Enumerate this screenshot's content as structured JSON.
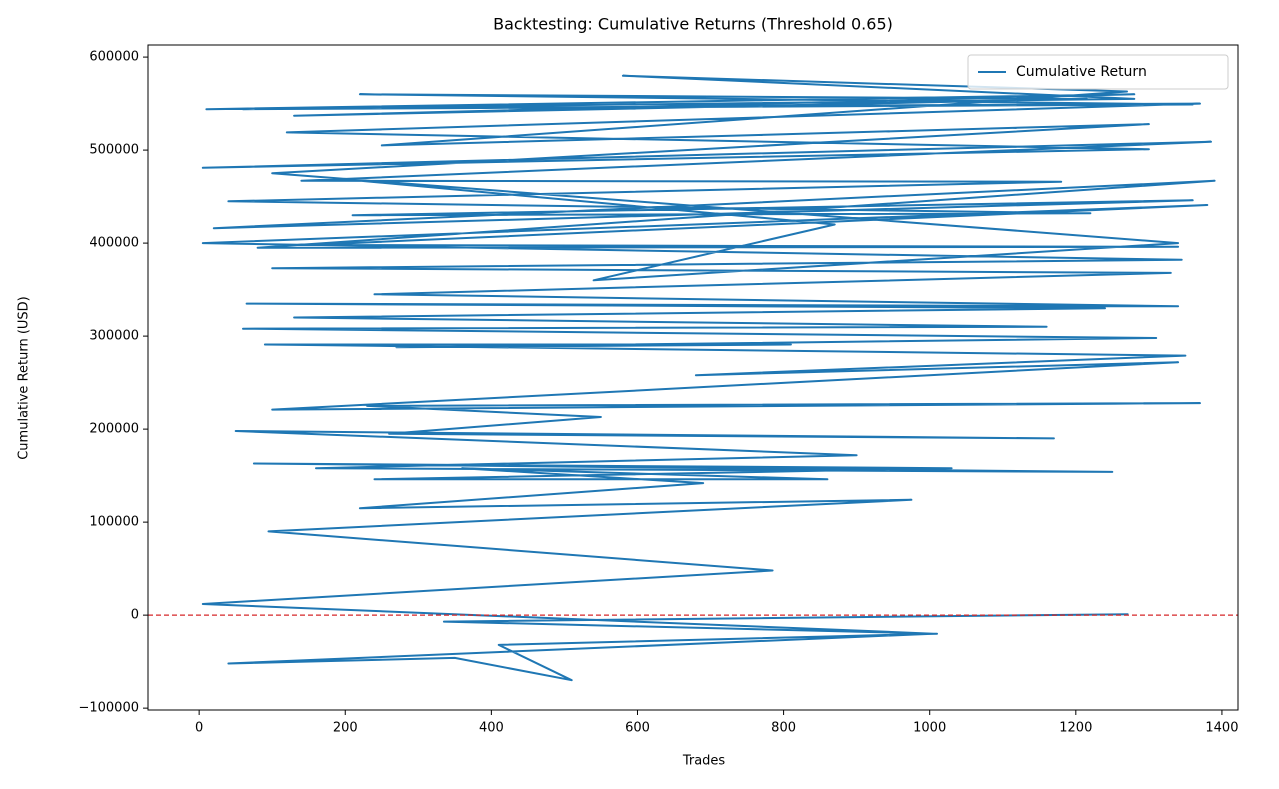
{
  "chart_data": {
    "type": "line",
    "title": "Backtesting: Cumulative Returns (Threshold 0.65)",
    "x_label": "Trades",
    "y_label": "Cumulative Return (USD)",
    "x": [
      1272,
      335,
      1010,
      410,
      510,
      350,
      40,
      1005,
      5,
      785,
      95,
      975,
      220,
      690,
      360,
      860,
      240,
      1030,
      75,
      1250,
      160,
      900,
      50,
      1170,
      260,
      550,
      230,
      1370,
      100,
      1340,
      680,
      1350,
      90,
      810,
      270,
      1310,
      60,
      1160,
      130,
      1240,
      65,
      1340,
      240,
      1330,
      100,
      1345,
      5,
      1380,
      150,
      1340,
      80,
      1390,
      20,
      1360,
      210,
      1220,
      40,
      1180,
      140,
      1385,
      5,
      1300,
      120,
      1370,
      60,
      1360,
      220,
      1215,
      130,
      1280,
      10,
      1280,
      580,
      1270,
      250,
      1300,
      100,
      1340,
      540,
      870,
      180
    ],
    "series": [
      {
        "name": "Cumulative Return",
        "color": "#1f77b4",
        "values": [
          1000,
          -7000,
          -20000,
          -32000,
          -70000,
          -46000,
          -52000,
          -20000,
          12000,
          48000,
          90000,
          124000,
          115000,
          142000,
          158000,
          146000,
          146000,
          158000,
          163000,
          154000,
          158000,
          172000,
          198000,
          190000,
          195000,
          213000,
          225000,
          228000,
          221000,
          272000,
          258000,
          279000,
          291000,
          291000,
          288000,
          298000,
          308000,
          310000,
          320000,
          330000,
          335000,
          332000,
          345000,
          368000,
          373000,
          382000,
          400000,
          441000,
          398000,
          396000,
          395000,
          467000,
          416000,
          446000,
          430000,
          432000,
          445000,
          466000,
          467000,
          509000,
          481000,
          501000,
          519000,
          550000,
          544000,
          549000,
          560000,
          555000,
          537000,
          560000,
          544000,
          555000,
          580000,
          563000,
          505000,
          528000,
          475000,
          400000,
          360000,
          420000,
          470000
        ]
      }
    ],
    "reference_line": {
      "value": 0,
      "color": "#d62728"
    },
    "xlim": [
      -70,
      1422
    ],
    "ylim": [
      -102000,
      613000
    ],
    "xticks": [
      0,
      200,
      400,
      600,
      800,
      1000,
      1200,
      1400
    ],
    "yticks": [
      {
        "value": -100000,
        "label": "−100000"
      },
      0,
      100000,
      200000,
      300000,
      400000,
      500000,
      600000
    ],
    "legend": "upper right"
  }
}
